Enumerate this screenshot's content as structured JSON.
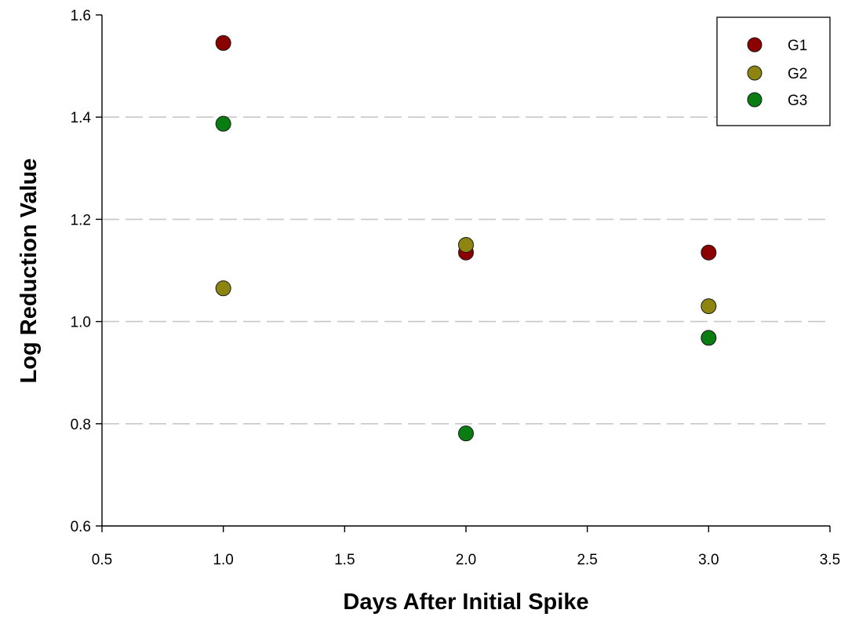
{
  "chart_data": {
    "type": "scatter",
    "title": "",
    "xlabel": "Days After Initial Spike",
    "ylabel": "Log Reduction Value",
    "xlim": [
      0.5,
      3.5
    ],
    "ylim": [
      0.6,
      1.6
    ],
    "xticks": [
      "0.5",
      "1.0",
      "1.5",
      "2.0",
      "2.5",
      "3.0",
      "3.5"
    ],
    "yticks": [
      "0.6",
      "0.8",
      "1.0",
      "1.2",
      "1.4",
      "1.6"
    ],
    "grid": "horizontal dashed",
    "legend_position": "top-right",
    "series": [
      {
        "name": "G1",
        "color": "#8b0000",
        "x": [
          1.0,
          2.0,
          3.0
        ],
        "y": [
          1.545,
          1.135,
          1.135
        ]
      },
      {
        "name": "G2",
        "color": "#8e8510",
        "x": [
          1.0,
          2.0,
          3.0
        ],
        "y": [
          1.065,
          1.15,
          1.03
        ]
      },
      {
        "name": "G3",
        "color": "#0a7d12",
        "x": [
          1.0,
          2.0,
          3.0
        ],
        "y": [
          1.387,
          0.781,
          0.968
        ]
      }
    ]
  }
}
